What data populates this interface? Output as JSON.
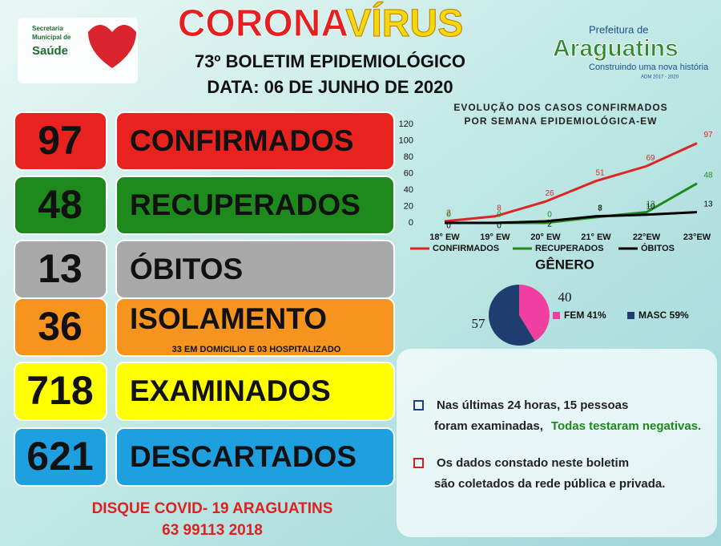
{
  "header": {
    "title_part1": "CORONA",
    "title_part2": "VÍRUS",
    "bulletin": "73º BOLETIM EPIDEMIOLÓGICO",
    "date": "DATA: 06 DE JUNHO DE 2020"
  },
  "logos": {
    "left": [
      "Secretaria",
      "Municipal de",
      "Saúde"
    ],
    "right": [
      "Prefeitura de",
      "Araguatins",
      "Construindo uma nova história",
      "ADM 2017 - 2020"
    ]
  },
  "indicators": [
    {
      "value": "97",
      "label": "CONFIRMADOS"
    },
    {
      "value": "48",
      "label": "RECUPERADOS"
    },
    {
      "value": "13",
      "label": "ÓBITOS"
    },
    {
      "value": "36",
      "label": "ISOLAMENTO",
      "note": "33 EM DOMICILIO E 03 HOSPITALIZADO"
    },
    {
      "value": "718",
      "label": "EXAMINADOS"
    },
    {
      "value": "621",
      "label": "DESCARTADOS"
    }
  ],
  "notes": [
    {
      "text": "Nas últimas 24 horas, 15 pessoas foram examinadas,",
      "highlight": "Todas testaram negativas."
    },
    {
      "text": "Os dados constado neste boletim são coletados da rede pública e privada."
    }
  ],
  "footer": [
    "DISQUE COVID- 19 ARAGUATINS",
    "63 99113 2018"
  ],
  "chart_data": [
    {
      "type": "line",
      "title": [
        "EVOLUÇÃO DOS CASOS CONFIRMADOS",
        "POR SEMANA EPIDEMIOLÓGICA-EW"
      ],
      "categories": [
        "18° EW",
        "19° EW",
        "20° EW",
        "21° EW",
        "22°EW",
        "23°EW"
      ],
      "series": [
        {
          "name": "CONFIRMADOS",
          "color": "#e02424",
          "values": [
            2,
            8,
            26,
            51,
            69,
            97
          ]
        },
        {
          "name": "RECUPERADOS",
          "color": "#1e8a1e",
          "values": [
            0,
            0,
            0,
            7,
            13,
            48
          ]
        },
        {
          "name": "ÓBITOS",
          "color": "#000000",
          "values": [
            0,
            0,
            2,
            8,
            10,
            13
          ]
        }
      ],
      "ylim": [
        0,
        120
      ],
      "yticks": [
        0,
        20,
        40,
        60,
        80,
        100,
        120
      ],
      "grid": false,
      "legend": "bottom"
    },
    {
      "type": "pie",
      "title": "GÊNERO",
      "categories": [
        "FEM 41%",
        "MASC 59%"
      ],
      "values": [
        40,
        57
      ],
      "colors": [
        "#ef3fa0",
        "#1f3d6e"
      ],
      "legend": "right"
    }
  ]
}
